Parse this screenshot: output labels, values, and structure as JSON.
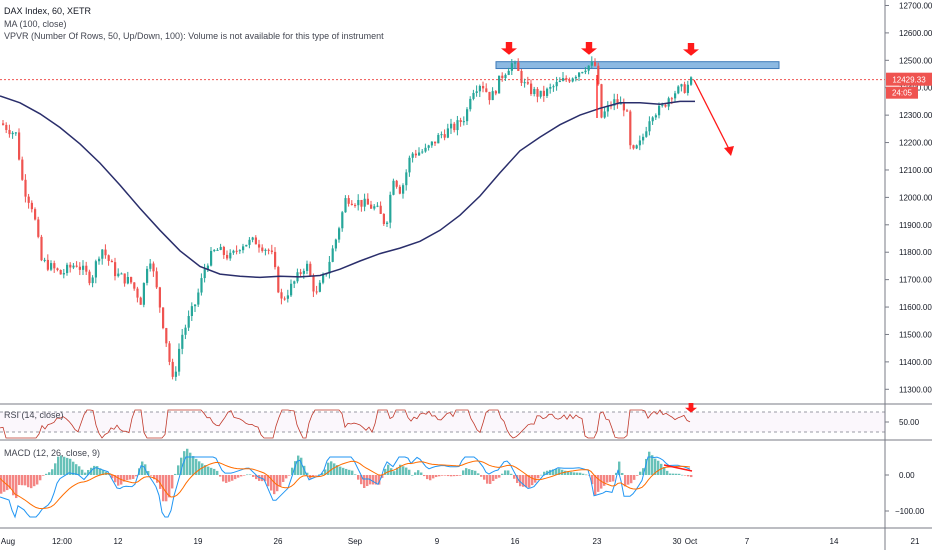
{
  "legend": {
    "title": "DAX Index, 60, XETR",
    "ma": "MA (100, close)",
    "vpvr": "VPVR (Number Of Rows, 50, Up/Down, 100): Volume is not available for this type of instrument"
  },
  "panes": {
    "rsi_label": "RSI (14, close)",
    "macd_label": "MACD (12, 26, close, 9)"
  },
  "colors": {
    "up": "#26a69a",
    "down": "#ef5350",
    "ma": "#2a2e6b",
    "resistance_box": "#5b9bd5",
    "arrow": "#ff1a1a",
    "rsi_line": "#c0392b",
    "macd_line": "#2196f3",
    "signal_line": "#ff6d00",
    "price_tag": "#ef5350"
  },
  "price_axis": {
    "ticks": [
      "12700.00",
      "12600.00",
      "12500.00",
      "12400.00",
      "12300.00",
      "12200.00",
      "12100.00",
      "12000.00",
      "11900.00",
      "11800.00",
      "11700.00",
      "11600.00",
      "11500.00",
      "11400.00",
      "11300.00"
    ],
    "current_price": "12429.33",
    "countdown": "24:05",
    "ylim": [
      11250,
      12720
    ]
  },
  "rsi_axis": {
    "ticks": [
      "50.00"
    ]
  },
  "macd_axis": {
    "ticks": [
      "0.00",
      "−100.00"
    ]
  },
  "time_axis": {
    "labels": [
      "Aug",
      "12:00",
      "12",
      "19",
      "26",
      "Sep",
      "9",
      "16",
      "23",
      "30",
      "Oct",
      "7",
      "14",
      "21"
    ]
  },
  "chart_data": {
    "type": "candlestick",
    "title": "DAX Index, 60, XETR",
    "ylim": [
      11250,
      12720
    ],
    "series": [
      {
        "name": "MA (100, close)",
        "points": [
          [
            0,
            12370
          ],
          [
            20,
            12345
          ],
          [
            40,
            12305
          ],
          [
            60,
            12255
          ],
          [
            80,
            12195
          ],
          [
            100,
            12125
          ],
          [
            120,
            12045
          ],
          [
            140,
            11960
          ],
          [
            160,
            11880
          ],
          [
            180,
            11805
          ],
          [
            200,
            11748
          ],
          [
            220,
            11720
          ],
          [
            240,
            11712
          ],
          [
            260,
            11708
          ],
          [
            280,
            11712
          ],
          [
            300,
            11710
          ],
          [
            320,
            11715
          ],
          [
            340,
            11738
          ],
          [
            360,
            11768
          ],
          [
            380,
            11795
          ],
          [
            400,
            11815
          ],
          [
            420,
            11840
          ],
          [
            440,
            11880
          ],
          [
            460,
            11935
          ],
          [
            480,
            12005
          ],
          [
            500,
            12090
          ],
          [
            520,
            12170
          ],
          [
            540,
            12220
          ],
          [
            560,
            12265
          ],
          [
            580,
            12300
          ],
          [
            600,
            12325
          ],
          [
            620,
            12345
          ],
          [
            640,
            12345
          ],
          [
            660,
            12340
          ],
          [
            680,
            12350
          ],
          [
            695,
            12350
          ]
        ]
      }
    ],
    "guides": {
      "price_line": 12429.33,
      "resistance_zone": [
        12470,
        12495
      ]
    }
  },
  "annotations": {
    "arrow_marks": 3,
    "rsi_arrow_marks": 1
  }
}
